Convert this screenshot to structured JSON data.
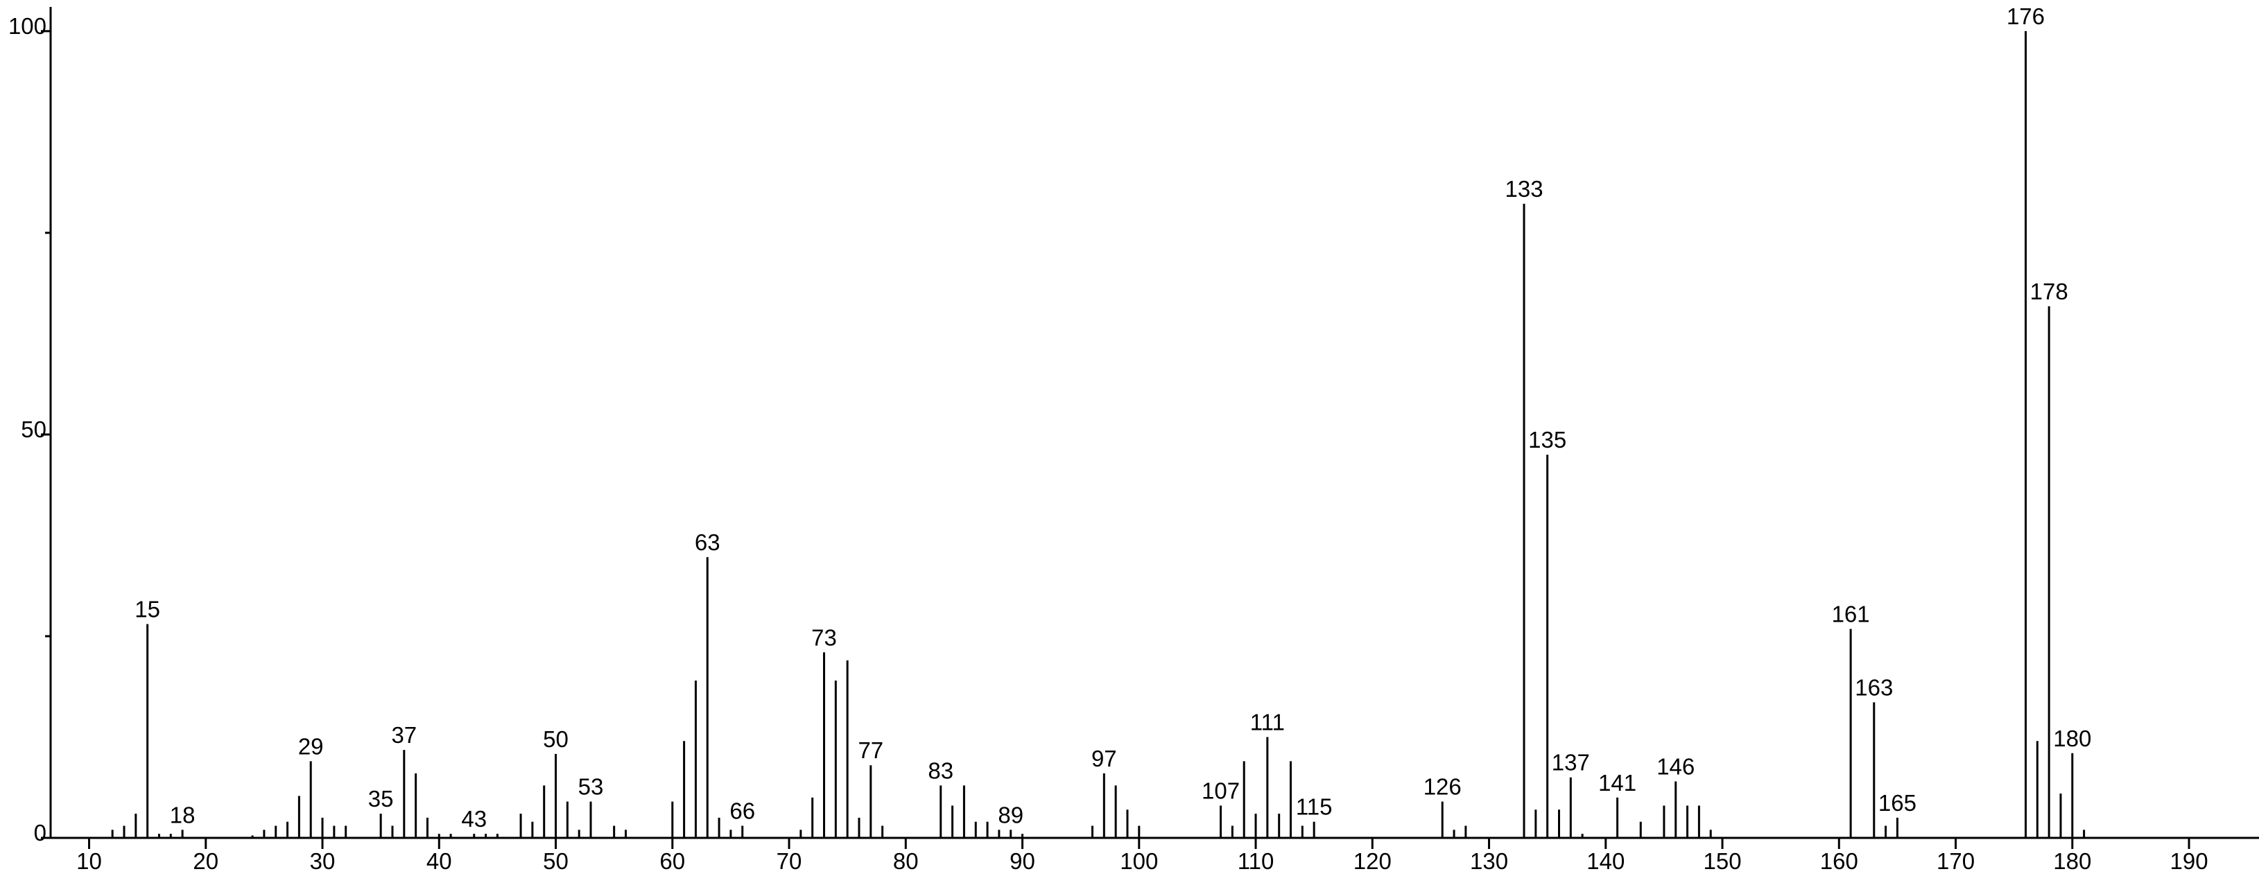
{
  "chart_data": {
    "type": "stem",
    "color": "#000000",
    "x": [
      12,
      13,
      14,
      15,
      16,
      17,
      18,
      24,
      25,
      26,
      27,
      28,
      29,
      30,
      31,
      32,
      35,
      36,
      37,
      38,
      39,
      40,
      41,
      43,
      44,
      45,
      47,
      48,
      49,
      50,
      51,
      52,
      53,
      55,
      56,
      60,
      61,
      62,
      63,
      64,
      65,
      66,
      71,
      72,
      73,
      74,
      75,
      76,
      77,
      78,
      83,
      84,
      85,
      86,
      87,
      88,
      89,
      90,
      96,
      97,
      98,
      99,
      100,
      107,
      108,
      109,
      110,
      111,
      112,
      113,
      114,
      115,
      126,
      127,
      128,
      133,
      134,
      135,
      136,
      137,
      138,
      141,
      143,
      145,
      146,
      147,
      148,
      149,
      161,
      163,
      164,
      165,
      176,
      177,
      178,
      179,
      180,
      181
    ],
    "values": [
      1,
      1.5,
      3,
      26.5,
      0.5,
      0.5,
      1,
      0.3,
      1,
      1.5,
      2,
      5.2,
      9.5,
      2.5,
      1.5,
      1.5,
      3,
      1.5,
      10.9,
      8,
      2.5,
      0.5,
      0.5,
      0.5,
      0.5,
      0.5,
      3,
      2,
      6.5,
      10.4,
      4.5,
      1,
      4.5,
      1.5,
      1,
      4.5,
      12,
      19.5,
      34.8,
      2.5,
      1,
      1.5,
      1,
      5,
      23,
      19.5,
      22,
      2.5,
      9,
      1.5,
      6.5,
      4,
      6.5,
      2,
      2,
      1,
      1,
      0.5,
      1.5,
      8,
      6.5,
      3.5,
      1.5,
      4,
      1.5,
      9.5,
      3,
      12.5,
      3,
      9.5,
      1.5,
      2,
      4.5,
      1,
      1.5,
      78.6,
      3.5,
      47.5,
      3.5,
      7.5,
      0.5,
      5,
      2,
      4,
      7,
      4,
      4,
      1,
      25.9,
      16.8,
      1.5,
      2.5,
      100,
      12,
      65.9,
      5.5,
      10.5,
      1
    ],
    "peak_labels": [
      null,
      null,
      null,
      "15",
      null,
      null,
      "18",
      null,
      null,
      null,
      null,
      null,
      "29",
      null,
      null,
      null,
      "35",
      null,
      "37",
      null,
      null,
      null,
      null,
      "43",
      null,
      null,
      null,
      null,
      null,
      "50",
      null,
      null,
      "53",
      null,
      null,
      null,
      null,
      null,
      "63",
      null,
      null,
      "66",
      null,
      null,
      "73",
      null,
      null,
      null,
      "77",
      null,
      "83",
      null,
      null,
      null,
      null,
      null,
      "89",
      null,
      null,
      "97",
      null,
      null,
      null,
      "107",
      null,
      null,
      null,
      "111",
      null,
      null,
      null,
      "115",
      "126",
      null,
      null,
      "133",
      null,
      "135",
      null,
      "137",
      null,
      "141",
      null,
      null,
      "146",
      null,
      null,
      null,
      "161",
      "163",
      null,
      "165",
      "176",
      null,
      "178",
      null,
      "180",
      null
    ],
    "xlim": [
      6.7,
      196
    ],
    "ylim": [
      0,
      103
    ],
    "xticks": [
      10,
      20,
      30,
      40,
      50,
      60,
      70,
      80,
      90,
      100,
      110,
      120,
      130,
      140,
      150,
      160,
      170,
      180,
      190
    ],
    "yticks": [
      0,
      50,
      100
    ],
    "y_minor_ticks": [
      25,
      75
    ]
  }
}
